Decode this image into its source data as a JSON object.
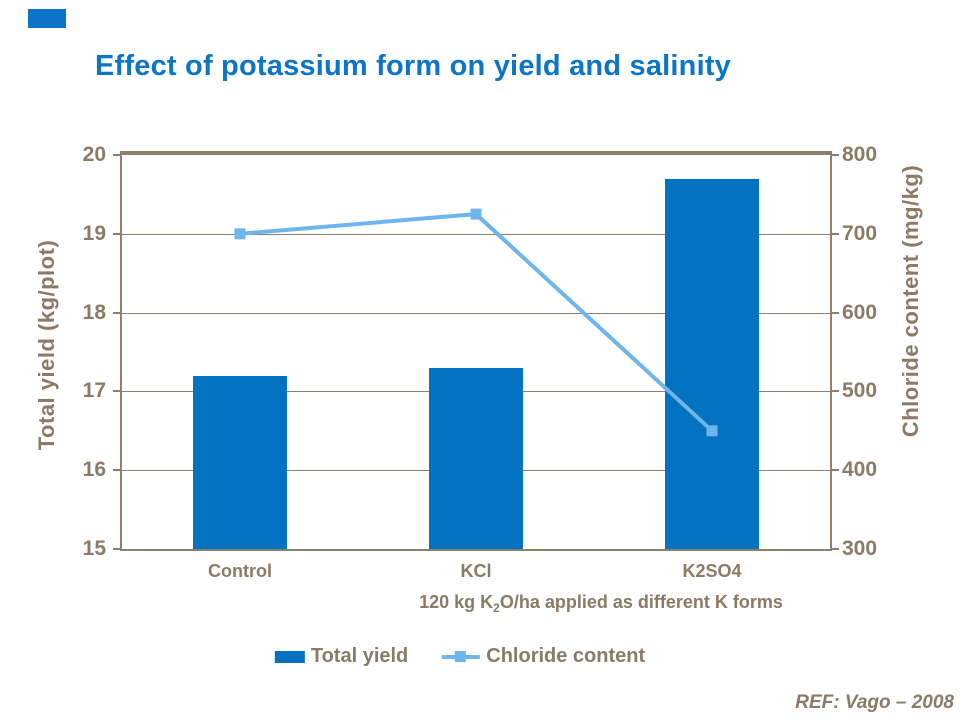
{
  "slide": {
    "title": "Effect of potassium form on yield and salinity",
    "title_color": "#0C75C8",
    "accent_color": "#0B74C6",
    "reference": "REF: Vago – 2008",
    "background": "#FFFFFF"
  },
  "chart_data": {
    "type": "combo-bar-line",
    "categories": [
      "Control",
      "KCl",
      "K2SO4"
    ],
    "series": [
      {
        "name": "Total yield",
        "type": "bar",
        "axis": "left",
        "values": [
          17.2,
          17.3,
          19.7
        ],
        "color": "#0372C1"
      },
      {
        "name": "Chloride content",
        "type": "line",
        "axis": "right",
        "values": [
          700,
          725,
          450
        ],
        "color": "#6FB5ED",
        "marker": "square"
      }
    ],
    "left_axis": {
      "title": "Total yield (kg/plot)",
      "min": 15,
      "max": 20,
      "ticks": [
        15,
        16,
        17,
        18,
        19,
        20
      ]
    },
    "right_axis": {
      "title": "Chloride content (mg/kg)",
      "min": 300,
      "max": 800,
      "ticks": [
        300,
        400,
        500,
        600,
        700,
        800
      ]
    },
    "x_axis": {
      "title_prefix": "120 kg K",
      "title_sub": "2",
      "title_suffix": "O/ha applied as different K forms"
    },
    "grid": true,
    "legend_position": "bottom",
    "axis_text_color": "#8A7A66",
    "axis_line_color": "#8D7F6D"
  }
}
